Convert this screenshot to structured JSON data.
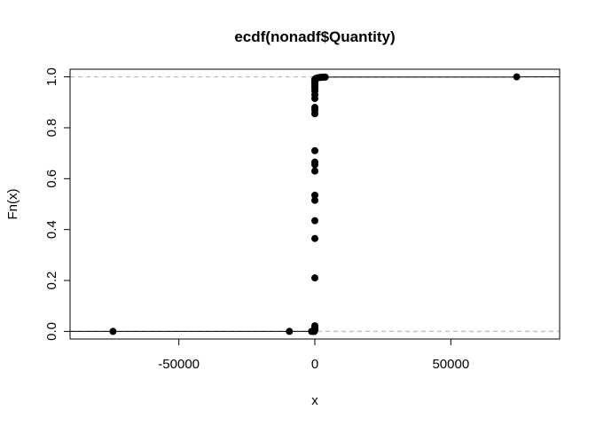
{
  "chart_data": {
    "type": "scatter",
    "subtype": "ecdf-step",
    "title": "ecdf(nonadf$Quantity)",
    "xlabel": "x",
    "ylabel": "Fn(x)",
    "xlim": [
      -90000,
      90000
    ],
    "ylim": [
      -0.03,
      1.03
    ],
    "xticks": [
      -50000,
      0,
      50000
    ],
    "xtick_labels": [
      "-50000",
      "0",
      "50000"
    ],
    "yticks": [
      0.0,
      0.2,
      0.4,
      0.6,
      0.8,
      1.0
    ],
    "ytick_labels": [
      "0.0",
      "0.2",
      "0.4",
      "0.6",
      "0.8",
      "1.0"
    ],
    "reference_lines": [
      0,
      1
    ],
    "points": [
      {
        "x": -74215,
        "y": 0.0
      },
      {
        "x": -9360,
        "y": 0.0
      },
      {
        "x": -1200,
        "y": 0.0
      },
      {
        "x": -600,
        "y": 0.0
      },
      {
        "x": -200,
        "y": 0.0
      },
      {
        "x": 0,
        "y": 0.005
      },
      {
        "x": 0,
        "y": 0.01
      },
      {
        "x": 0,
        "y": 0.015
      },
      {
        "x": 0,
        "y": 0.022
      },
      {
        "x": 0,
        "y": 0.21
      },
      {
        "x": 0,
        "y": 0.365
      },
      {
        "x": 0,
        "y": 0.435
      },
      {
        "x": 0,
        "y": 0.515
      },
      {
        "x": 0,
        "y": 0.535
      },
      {
        "x": 0,
        "y": 0.63
      },
      {
        "x": 0,
        "y": 0.655
      },
      {
        "x": 0,
        "y": 0.665
      },
      {
        "x": 0,
        "y": 0.71
      },
      {
        "x": 0,
        "y": 0.855
      },
      {
        "x": 0,
        "y": 0.87
      },
      {
        "x": 0,
        "y": 0.88
      },
      {
        "x": 0,
        "y": 0.915
      },
      {
        "x": 0,
        "y": 0.93
      },
      {
        "x": 0,
        "y": 0.945
      },
      {
        "x": 0,
        "y": 0.955
      },
      {
        "x": 0,
        "y": 0.962
      },
      {
        "x": 0,
        "y": 0.97
      },
      {
        "x": 0,
        "y": 0.975
      },
      {
        "x": 0,
        "y": 0.98
      },
      {
        "x": 0,
        "y": 0.985
      },
      {
        "x": 0,
        "y": 0.99
      },
      {
        "x": 200,
        "y": 0.992
      },
      {
        "x": 400,
        "y": 0.994
      },
      {
        "x": 700,
        "y": 0.995
      },
      {
        "x": 1000,
        "y": 0.996
      },
      {
        "x": 1500,
        "y": 0.997
      },
      {
        "x": 2000,
        "y": 0.998
      },
      {
        "x": 2600,
        "y": 0.998
      },
      {
        "x": 3200,
        "y": 0.999
      },
      {
        "x": 3800,
        "y": 0.999
      },
      {
        "x": 74215,
        "y": 1.0
      }
    ]
  },
  "colors": {
    "points": "#000000",
    "axis": "#000000",
    "reference": "#bebebe"
  }
}
